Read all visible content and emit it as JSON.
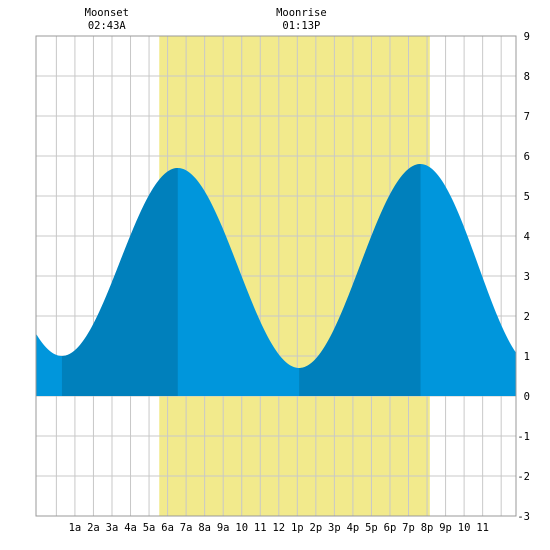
{
  "chart_data": {
    "type": "area",
    "title": "",
    "xlabel": "",
    "ylabel": "",
    "x_range_hours": [
      -1.1,
      24.8
    ],
    "ylim": [
      -3,
      9
    ],
    "y_ticks": [
      -3,
      -2,
      -1,
      0,
      1,
      2,
      3,
      4,
      5,
      6,
      7,
      8,
      9
    ],
    "x_tick_labels": [
      "1a",
      "2a",
      "3a",
      "4a",
      "5a",
      "6a",
      "7a",
      "8a",
      "9a",
      "10",
      "11",
      "12",
      "1p",
      "2p",
      "3p",
      "4p",
      "5p",
      "6p",
      "7p",
      "8p",
      "9p",
      "10",
      "11"
    ],
    "grid": true,
    "daylight": {
      "start_hour": 5.55,
      "end_hour": 20.15,
      "color": "#f2ea8c"
    },
    "moon_events": [
      {
        "label": "Moonset",
        "time": "02:43A",
        "hour": 2.72
      },
      {
        "label": "Moonrise",
        "time": "01:13P",
        "hour": 13.22
      }
    ],
    "tide_extremes": [
      {
        "type": "low",
        "hour": 0.3,
        "height": 1.0
      },
      {
        "type": "high",
        "hour": 6.55,
        "height": 5.7
      },
      {
        "type": "low",
        "hour": 13.1,
        "height": 0.7
      },
      {
        "type": "high",
        "hour": 19.65,
        "height": 5.8
      }
    ],
    "tide_end": {
      "hour": 24.8,
      "height": 1.8
    },
    "dark_bands": [
      {
        "from_hour": 0.3,
        "to_hour": 6.55
      },
      {
        "from_hour": 13.1,
        "to_hour": 19.65
      }
    ],
    "colors": {
      "tide_light": "#0096dc",
      "tide_dark": "#0080bc",
      "grid": "#c8c8c8",
      "border": "#999999"
    }
  }
}
